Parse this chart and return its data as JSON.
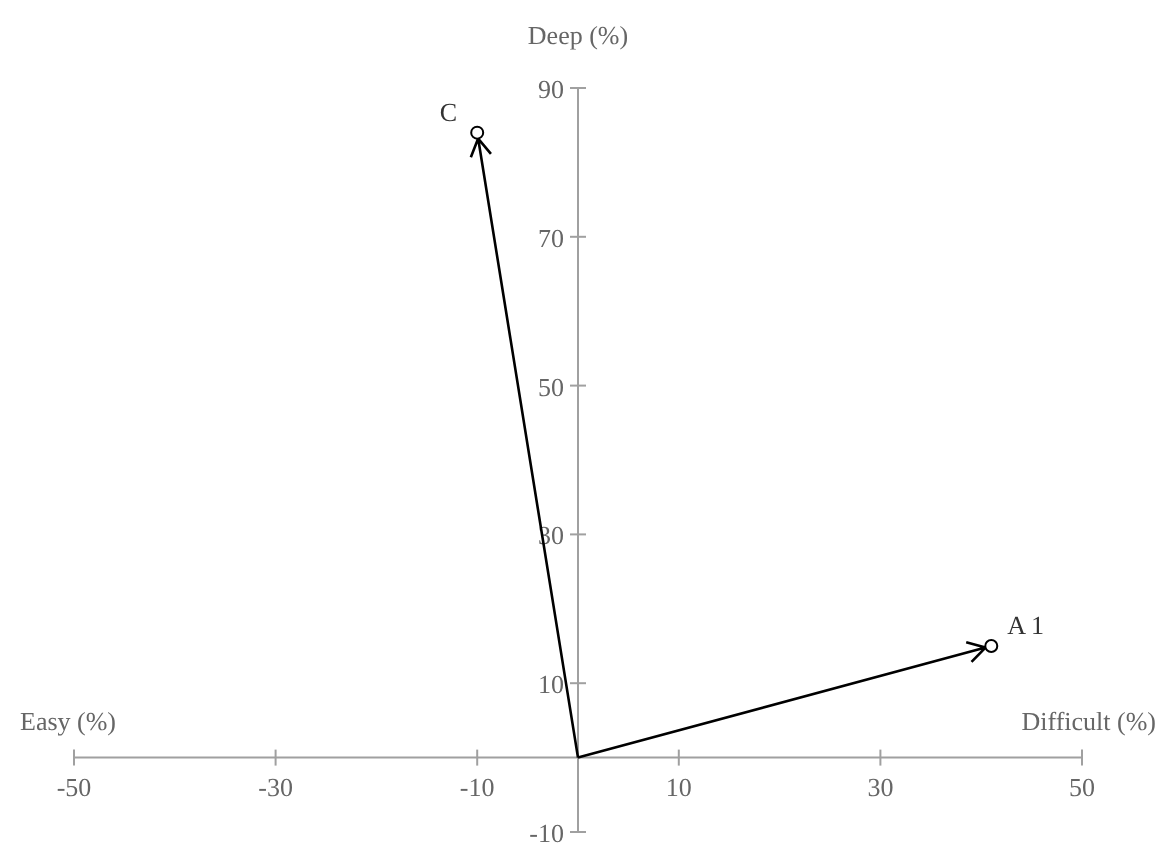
{
  "chart_data": {
    "type": "scatter",
    "xlabel": "Difficult (%)",
    "ylabel": "Deep (%)",
    "xlim": [
      -50,
      50
    ],
    "xticks": [
      -50,
      -30,
      -10,
      10,
      30,
      50
    ],
    "ylim": [
      -10,
      90
    ],
    "yticks": [
      -10,
      10,
      30,
      50,
      70,
      90
    ],
    "marker": "circle",
    "series": [
      {
        "color": "#000000",
        "x": [
          41,
          -10
        ],
        "values": [
          15,
          84
        ]
      }
    ],
    "annotations": [
      {
        "text": "A 1",
        "x": 41,
        "y": 15
      },
      {
        "text": "C",
        "x": -10,
        "y": 84
      },
      "Easy (%)"
    ]
  }
}
